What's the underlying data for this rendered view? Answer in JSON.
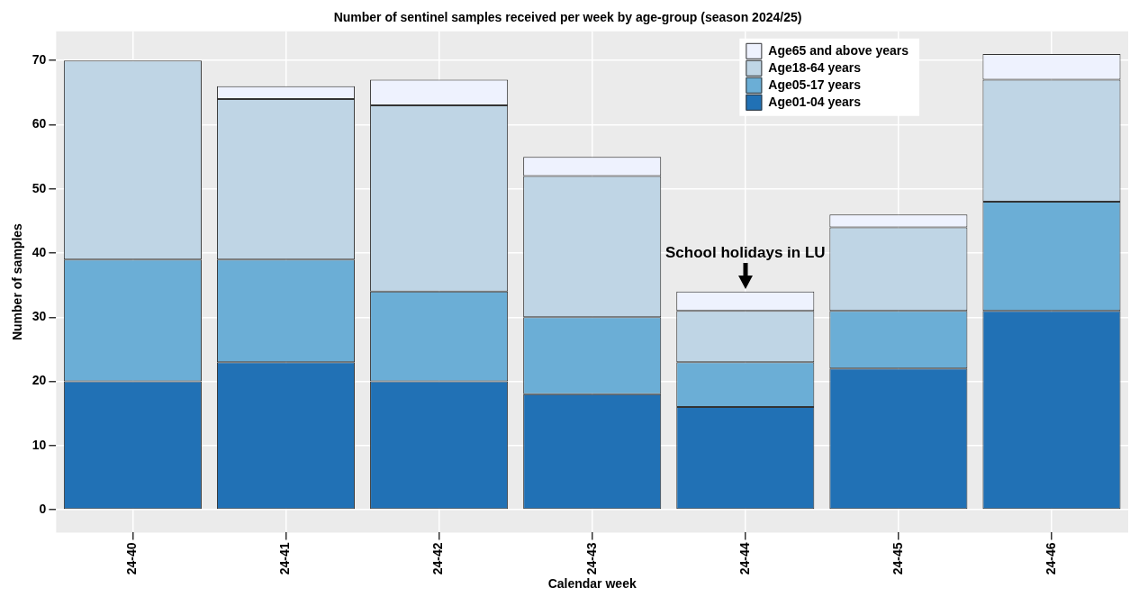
{
  "chart_data": {
    "type": "bar",
    "title": "Number of sentinel samples received per week by age-group (season 2024/25)",
    "xlabel": "Calendar week",
    "ylabel": "Number of samples",
    "categories": [
      "24-40",
      "24-41",
      "24-42",
      "24-43",
      "24-44",
      "24-45",
      "24-46"
    ],
    "stacked": true,
    "series": [
      {
        "name": "Age01-04 years",
        "color": "#2171b5",
        "values": [
          20,
          23,
          20,
          18,
          16,
          22,
          31
        ]
      },
      {
        "name": "Age05-17 years",
        "color": "#6baed6",
        "values": [
          19,
          16,
          14,
          12,
          7,
          9,
          17
        ]
      },
      {
        "name": "Age18-64 years",
        "color": "#bfd5e5",
        "values": [
          31,
          25,
          29,
          22,
          8,
          13,
          19
        ]
      },
      {
        "name": "Age65 and above years",
        "color": "#eef2fe",
        "values": [
          0,
          2,
          4,
          3,
          3,
          2,
          4
        ]
      }
    ],
    "ylim": [
      -3.55,
      74.55
    ],
    "yticks": [
      0,
      10,
      20,
      30,
      40,
      50,
      60,
      70
    ],
    "grid": true,
    "legend": "top right",
    "annotations": [
      {
        "text": "School holidays in LU",
        "x": "24-44",
        "y": 34
      }
    ]
  }
}
